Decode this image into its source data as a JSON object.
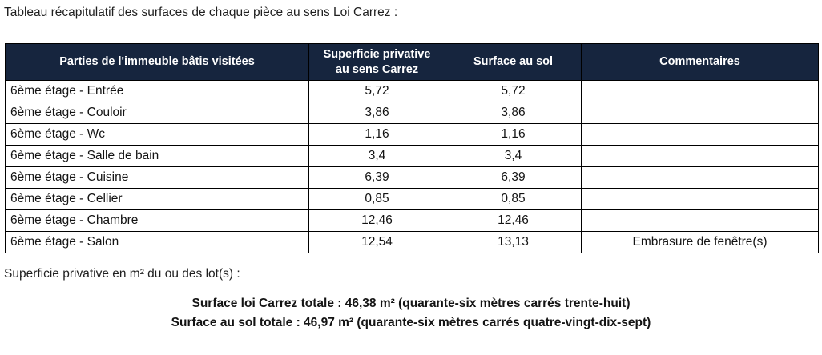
{
  "page": {
    "title": "Tableau récapitulatif des surfaces de chaque pièce au sens Loi Carrez :",
    "subtitle": "Superficie privative en m² du ou des lot(s) :"
  },
  "table": {
    "headers": [
      "Parties de l'immeuble bâtis visitées",
      "Superficie privative au sens Carrez",
      "Surface au sol",
      "Commentaires"
    ],
    "rows": [
      {
        "piece": "6ème étage - Entrée",
        "carrez": "5,72",
        "sol": "5,72",
        "commentaire": ""
      },
      {
        "piece": "6ème étage - Couloir",
        "carrez": "3,86",
        "sol": "3,86",
        "commentaire": ""
      },
      {
        "piece": "6ème étage - Wc",
        "carrez": "1,16",
        "sol": "1,16",
        "commentaire": ""
      },
      {
        "piece": "6ème étage - Salle de bain",
        "carrez": "3,4",
        "sol": "3,4",
        "commentaire": ""
      },
      {
        "piece": "6ème étage - Cuisine",
        "carrez": "6,39",
        "sol": "6,39",
        "commentaire": ""
      },
      {
        "piece": "6ème étage - Cellier",
        "carrez": "0,85",
        "sol": "0,85",
        "commentaire": ""
      },
      {
        "piece": "6ème étage - Chambre",
        "carrez": "12,46",
        "sol": "12,46",
        "commentaire": ""
      },
      {
        "piece": "6ème étage - Salon",
        "carrez": "12,54",
        "sol": "13,13",
        "commentaire": "Embrasure de fenêtre(s)"
      }
    ]
  },
  "totals": {
    "carrez_line": "Surface loi Carrez totale : 46,38 m² (quarante-six mètres carrés trente-huit)",
    "sol_line": "Surface au sol totale : 46,97 m² (quarante-six mètres carrés quatre-vingt-dix-sept)",
    "carrez_total_m2": "46,38",
    "sol_total_m2": "46,97"
  },
  "colors": {
    "header_bg": "#16253e",
    "header_text": "#ffffff",
    "border_color": "#000000"
  }
}
